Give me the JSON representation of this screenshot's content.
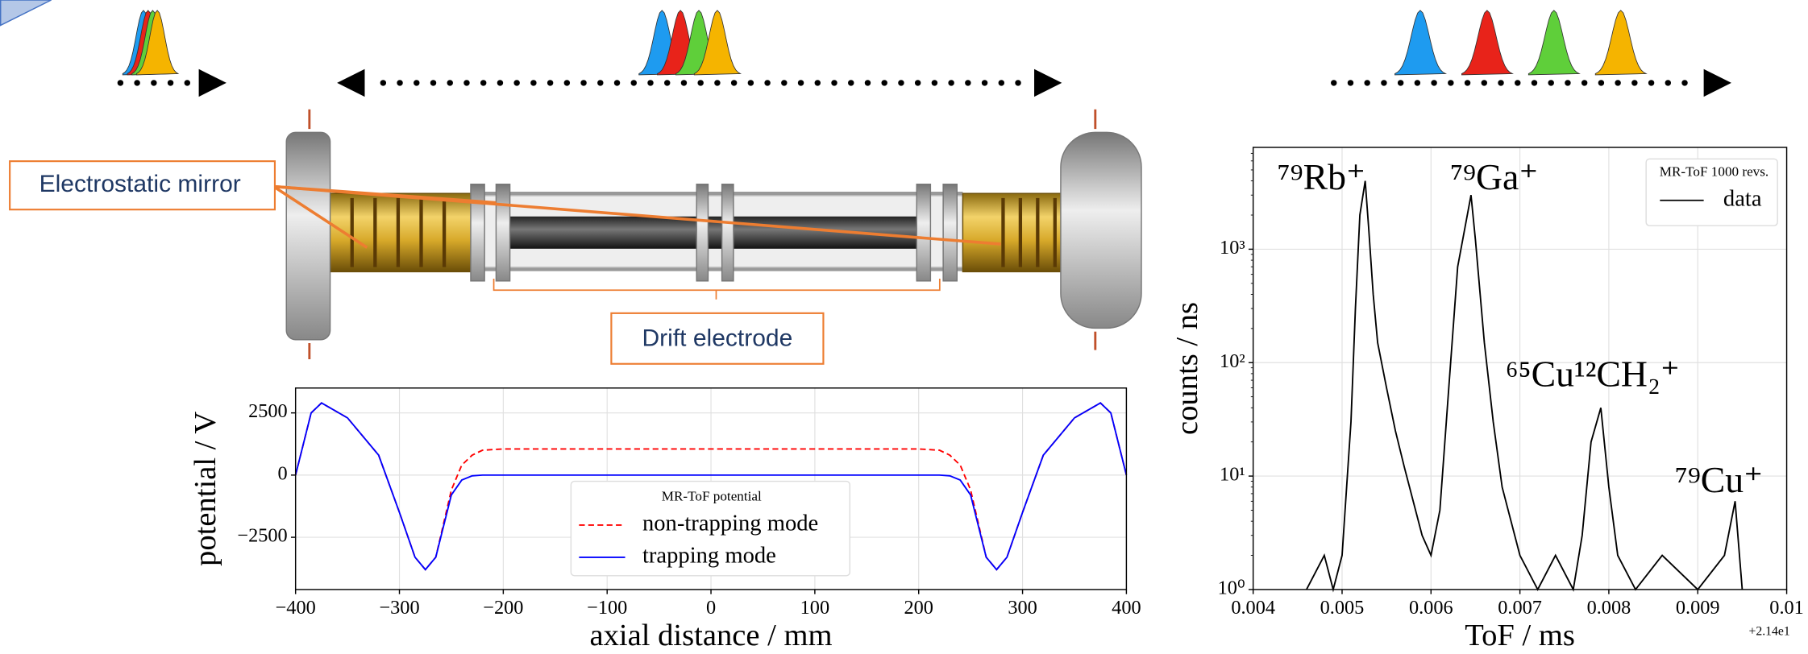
{
  "diagram": {
    "labels": [
      "Electrostatic mirror",
      "Drift electrode"
    ]
  },
  "chart_data": [
    {
      "type": "line",
      "xlabel": "axial distance / mm",
      "ylabel": "potential / V",
      "x": [
        -400,
        -385,
        -375,
        -350,
        -320,
        -300,
        -285,
        -275,
        -265,
        -250,
        -240,
        -230,
        -220,
        -200,
        -100,
        0,
        100,
        200,
        220,
        230,
        240,
        250,
        265,
        275,
        285,
        300,
        320,
        350,
        375,
        385,
        400
      ],
      "series": [
        {
          "name": "non-trapping mode",
          "color": "#ff0000",
          "linestyle": "dashed",
          "values": [
            0,
            2500,
            2900,
            2300,
            800,
            -1500,
            -3300,
            -3800,
            -3300,
            -600,
            400,
            800,
            1000,
            1050,
            1050,
            1050,
            1050,
            1050,
            1000,
            800,
            400,
            -600,
            -3300,
            -3800,
            -3300,
            -1500,
            800,
            2300,
            2900,
            2500,
            0
          ]
        },
        {
          "name": "trapping mode",
          "color": "#0000ff",
          "linestyle": "solid",
          "values": [
            0,
            2500,
            2900,
            2300,
            800,
            -1500,
            -3300,
            -3800,
            -3300,
            -800,
            -200,
            -30,
            0,
            0,
            0,
            0,
            0,
            0,
            0,
            -30,
            -200,
            -800,
            -3300,
            -3800,
            -3300,
            -1500,
            800,
            2300,
            2900,
            2500,
            0
          ]
        }
      ],
      "xlim": [
        -400,
        400
      ],
      "xticks": [
        {
          "value": -400,
          "label": "−400"
        },
        {
          "value": -300,
          "label": "−300"
        },
        {
          "value": -200,
          "label": "−200"
        },
        {
          "value": -100,
          "label": "−100"
        },
        0,
        100,
        200,
        300,
        400
      ],
      "ylim": [
        -4600,
        3500
      ],
      "yticks": [
        {
          "value": -2500,
          "label": "−2500"
        },
        0,
        2500
      ],
      "grid": true,
      "legend_title": "MR-ToF potential",
      "legend": "lower center"
    },
    {
      "type": "line",
      "log_y": true,
      "xlabel": "ToF / ms",
      "ylabel": "counts / ns",
      "offset_text": "+2.14e1",
      "x": [
        0.0046,
        0.0048,
        0.0049,
        0.005,
        0.0051,
        0.00515,
        0.0052,
        0.00526,
        0.0053,
        0.00535,
        0.0054,
        0.0055,
        0.0056,
        0.0057,
        0.0058,
        0.0059,
        0.006,
        0.0061,
        0.0062,
        0.0063,
        0.00645,
        0.0065,
        0.0066,
        0.0067,
        0.0068,
        0.0069,
        0.007,
        0.0072,
        0.0074,
        0.0076,
        0.0077,
        0.0078,
        0.00791,
        0.008,
        0.0081,
        0.0083,
        0.0086,
        0.009,
        0.0093,
        0.00942,
        0.0095
      ],
      "series": [
        {
          "name": "data",
          "color": "#000000",
          "values": [
            1,
            2,
            1,
            2,
            30,
            300,
            2000,
            4000,
            1500,
            400,
            150,
            60,
            25,
            12,
            6,
            3,
            2,
            5,
            60,
            700,
            3000,
            1200,
            150,
            30,
            8,
            4,
            2,
            1,
            2,
            1,
            3,
            20,
            40,
            8,
            2,
            1,
            2,
            1,
            2,
            6,
            1
          ]
        }
      ],
      "xlim": [
        0.004,
        0.01
      ],
      "xticks": [
        0.004,
        0.005,
        0.006,
        0.007,
        0.008,
        0.009,
        0.01
      ],
      "ylim": [
        1,
        7900
      ],
      "yticks": [
        {
          "value": 1,
          "label": "10⁰"
        },
        {
          "value": 10,
          "label": "10¹"
        },
        {
          "value": 100,
          "label": "10²"
        },
        {
          "value": 1000,
          "label": "10³"
        }
      ],
      "grid": true,
      "legend_title": "MR-ToF 1000 revs.",
      "legend": "upper right",
      "annotations": [
        "⁷⁹Rb⁺",
        "⁷⁹Ga⁺",
        "⁶⁵Cu¹²CH₂⁺",
        "⁷⁹Cu⁺"
      ]
    }
  ]
}
